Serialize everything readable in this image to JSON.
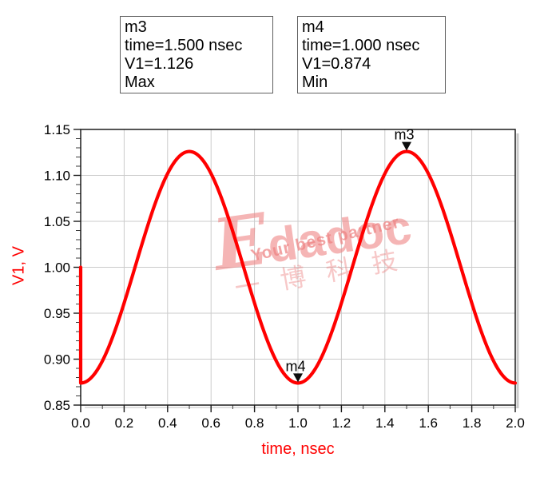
{
  "marker_boxes": [
    {
      "name": "m3",
      "lines": [
        "m3",
        "time=1.500 nsec",
        "V1=1.126",
        "Max"
      ]
    },
    {
      "name": "m4",
      "lines": [
        "m4",
        "time=1.000 nsec",
        "V1=0.874",
        "Min"
      ]
    }
  ],
  "chart_data": {
    "type": "line",
    "title": "",
    "xlabel": "time, nsec",
    "ylabel": "V1, V",
    "xlim": [
      0.0,
      2.0
    ],
    "ylim": [
      0.85,
      1.15
    ],
    "x_tick_labels": [
      "0.0",
      "0.2",
      "0.4",
      "0.6",
      "0.8",
      "1.0",
      "1.2",
      "1.4",
      "1.6",
      "1.8",
      "2.0"
    ],
    "y_tick_labels": [
      "0.85",
      "0.90",
      "0.95",
      "1.00",
      "1.05",
      "1.10",
      "1.15"
    ],
    "x_minor_step": 0.1,
    "y_minor_step": 0.01,
    "grid": "major",
    "legend": "none",
    "series": [
      {
        "name": "V1",
        "color": "#ff0000",
        "model": "V1(t) = 1.000 - 0.126*cos(2*pi*t/1ns)",
        "offset": 1.0,
        "amplitude": 0.126,
        "period_ns": 1.0,
        "initial_transient_point": {
          "t": 0.0,
          "v": 1.0
        }
      }
    ],
    "markers": [
      {
        "label": "m3",
        "t": 1.5,
        "v": 1.126,
        "kind": "Max"
      },
      {
        "label": "m4",
        "t": 1.0,
        "v": 0.874,
        "kind": "Min"
      }
    ]
  },
  "watermark": {
    "brand_initial": "E",
    "brand_rest": "dadoc",
    "tagline": "Your best partner",
    "cjk_text": "一博科技",
    "color": "#ee8484"
  },
  "style": {
    "trace_color": "#ff0000",
    "axis_title_color": "#ff0000",
    "grid_color": "#cbcbcb",
    "frame_color": "#1b1b1b",
    "shadow_color": "#c9c9c9",
    "text_color": "#000000"
  }
}
